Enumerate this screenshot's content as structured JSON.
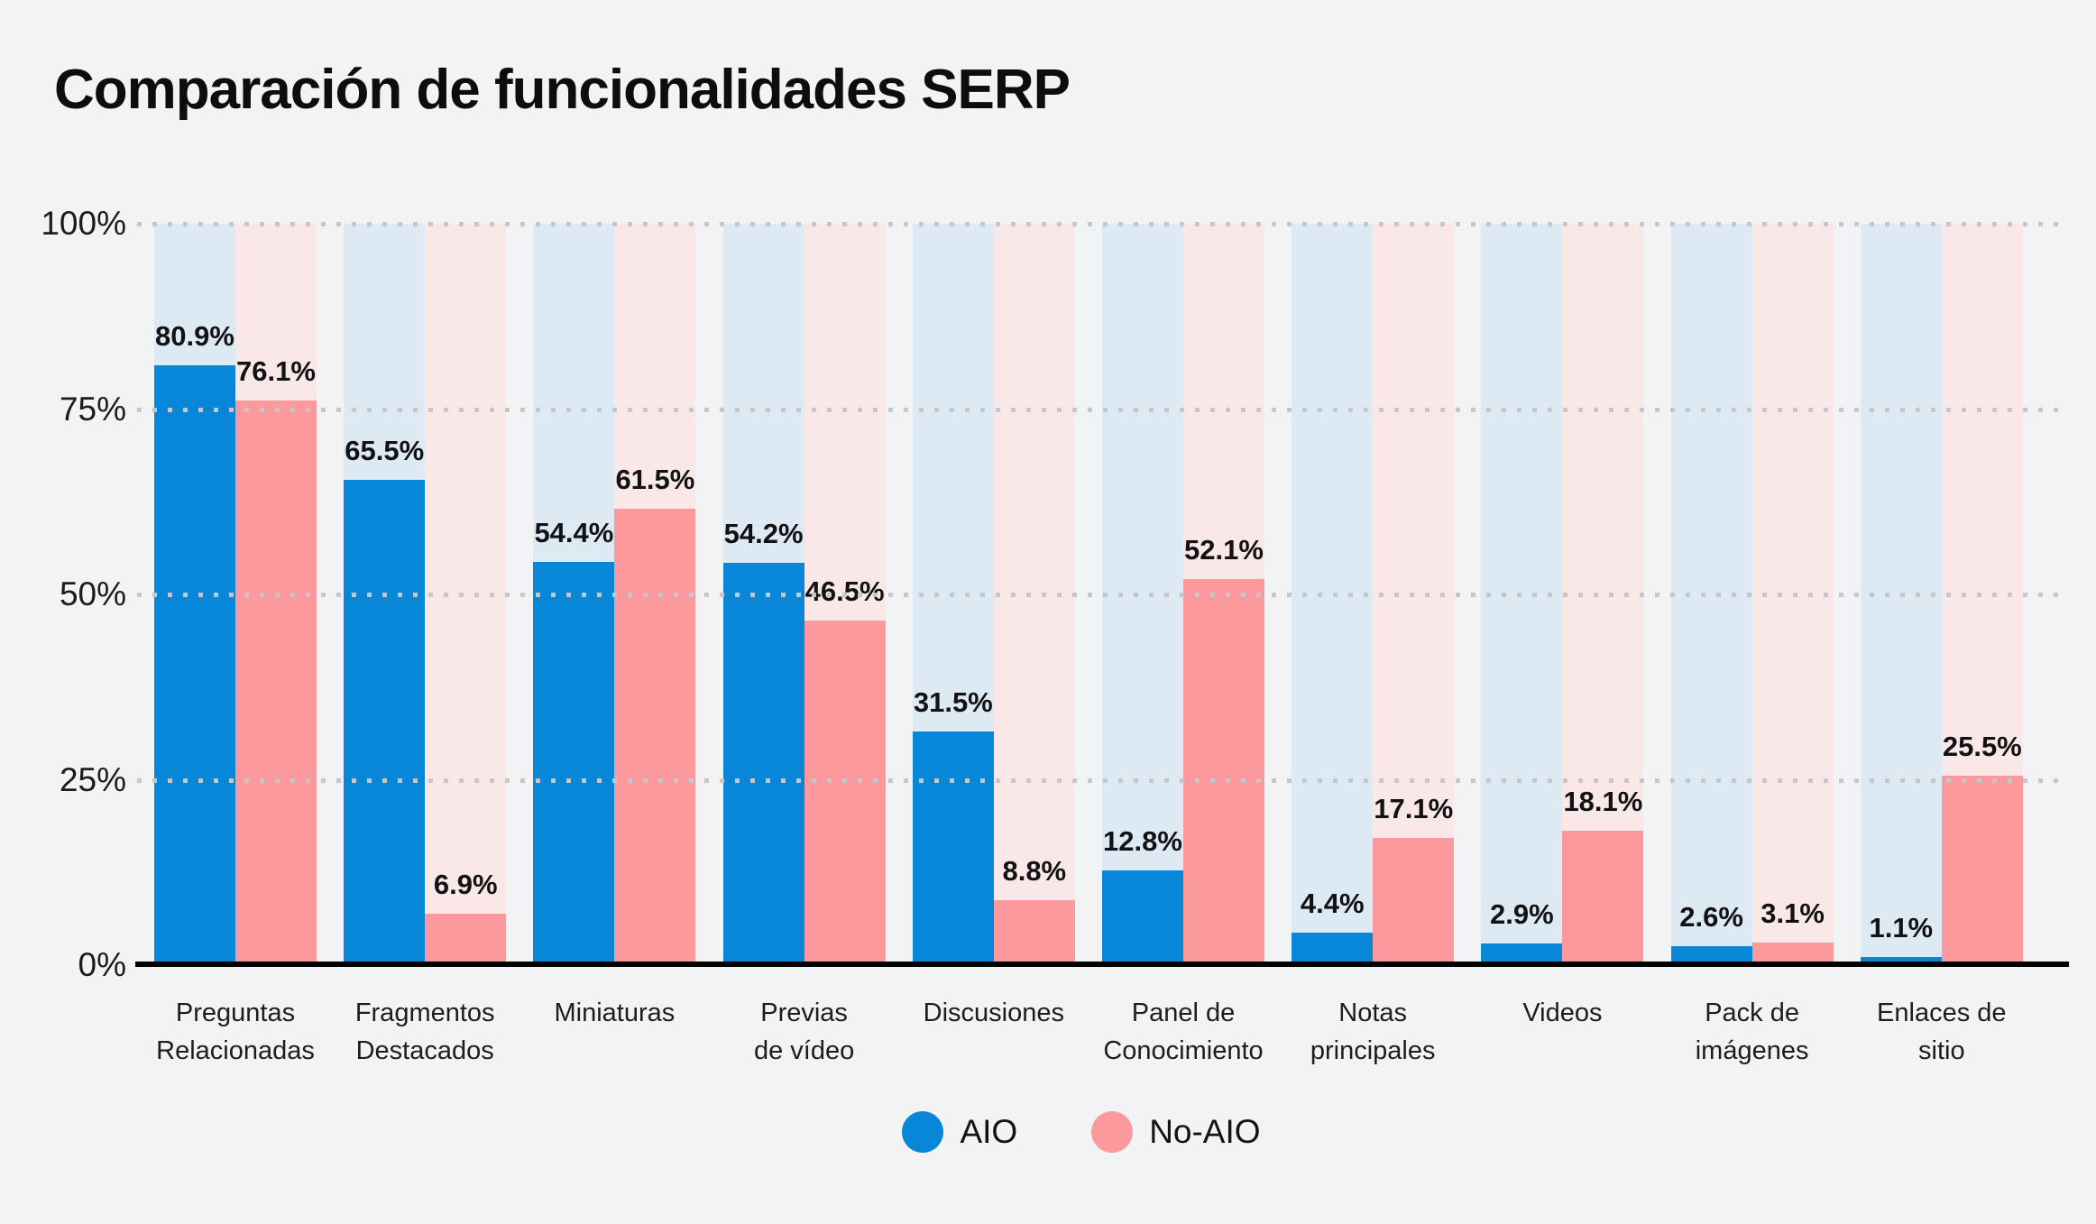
{
  "title": "Comparación de funcionalidades SERP",
  "colors": {
    "background": "#f2f3f5",
    "aio_bar": "#0887d9",
    "noaio_bar": "#fb999c",
    "aio_track": "#dde9f3",
    "noaio_track": "#f9e8e7",
    "grid_dots": "#c5c7cb",
    "axis_line": "#000000",
    "text": "#1d1d1f"
  },
  "legend": {
    "items": [
      {
        "label": "AIO",
        "color": "#0887d9"
      },
      {
        "label": "No-AIO",
        "color": "#fb999c"
      }
    ]
  },
  "chart_data": {
    "type": "bar",
    "title": "Comparación de funcionalidades SERP",
    "xlabel": "",
    "ylabel": "",
    "ylim": [
      0,
      100
    ],
    "y_ticks": [
      {
        "label": "100%",
        "value": 100
      },
      {
        "label": "75%",
        "value": 75
      },
      {
        "label": "50%",
        "value": 50
      },
      {
        "label": "25%",
        "value": 25
      },
      {
        "label": "0%",
        "value": 0
      }
    ],
    "grid": "dotted-horizontal",
    "legend_position": "bottom",
    "categories": [
      {
        "label_lines": [
          "Preguntas",
          "Relacionadas"
        ]
      },
      {
        "label_lines": [
          "Fragmentos",
          "Destacados"
        ]
      },
      {
        "label_lines": [
          "Miniaturas"
        ]
      },
      {
        "label_lines": [
          "Previas",
          "de vídeo"
        ]
      },
      {
        "label_lines": [
          "Discusiones"
        ]
      },
      {
        "label_lines": [
          "Panel de",
          "Conocimiento"
        ]
      },
      {
        "label_lines": [
          "Notas",
          "principales"
        ]
      },
      {
        "label_lines": [
          "Videos"
        ]
      },
      {
        "label_lines": [
          "Pack de",
          "imágenes"
        ]
      },
      {
        "label_lines": [
          "Enlaces de",
          "sitio"
        ]
      }
    ],
    "series": [
      {
        "name": "AIO",
        "values": [
          80.9,
          65.5,
          54.4,
          54.2,
          31.5,
          12.8,
          4.4,
          2.9,
          2.6,
          1.1
        ],
        "value_labels": [
          "80.9%",
          "65.5%",
          "54.4%",
          "54.2%",
          "31.5%",
          "12.8%",
          "4.4%",
          "2.9%",
          "2.6%",
          "1.1%"
        ]
      },
      {
        "name": "No-AIO",
        "values": [
          76.1,
          6.9,
          61.5,
          46.5,
          8.8,
          52.1,
          17.1,
          18.1,
          3.1,
          25.5
        ],
        "value_labels": [
          "76.1%",
          "6.9%",
          "61.5%",
          "46.5%",
          "8.8%",
          "52.1%",
          "17.1%",
          "18.1%",
          "3.1%",
          "25.5%"
        ]
      }
    ]
  }
}
